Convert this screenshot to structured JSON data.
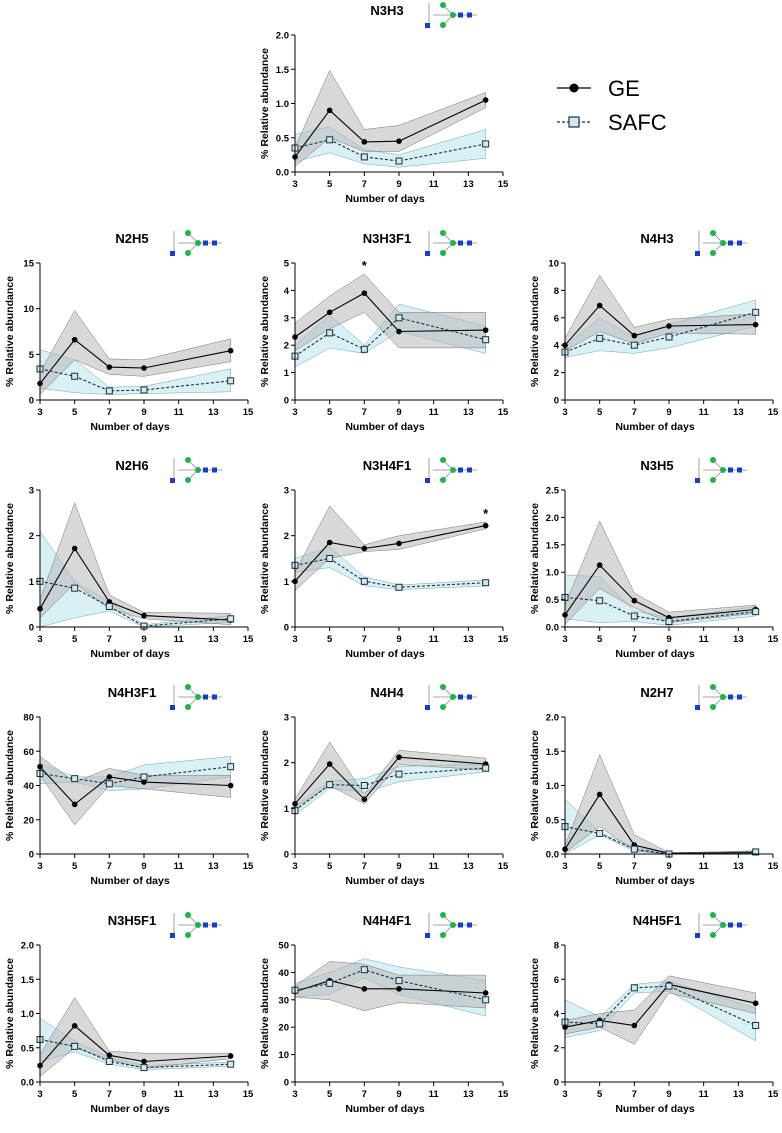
{
  "legend": {
    "ge_label": "GE",
    "safc_label": "SAFC"
  },
  "colors": {
    "ge_line": "#000000",
    "ge_band": "#b8b8b8",
    "safc_line": "#1f2f3a",
    "safc_marker_fill": "#cfe9ef",
    "safc_band": "#b9e3ec"
  },
  "chart_data": [
    {
      "type": "line",
      "title": "N3H3",
      "glycan": "N3H3",
      "xlabel": "Number of days",
      "ylabel": "% Relative abundance",
      "xlim": [
        3,
        15
      ],
      "xticks": [
        3,
        5,
        7,
        9,
        11,
        13,
        15
      ],
      "ylim": [
        0,
        2
      ],
      "yticks": [
        "0.0",
        "0.5",
        "1.0",
        "1.5",
        "2.0"
      ],
      "x": [
        3,
        5,
        7,
        9,
        14
      ],
      "series": [
        {
          "name": "GE",
          "values": [
            0.22,
            0.9,
            0.44,
            0.45,
            1.05
          ],
          "upper": [
            0.36,
            1.48,
            0.62,
            0.68,
            1.16
          ],
          "lower": [
            0.08,
            0.5,
            0.3,
            0.3,
            0.94
          ]
        },
        {
          "name": "SAFC",
          "values": [
            0.35,
            0.47,
            0.22,
            0.16,
            0.41
          ],
          "upper": [
            0.55,
            0.66,
            0.33,
            0.25,
            0.62
          ],
          "lower": [
            0.15,
            0.28,
            0.12,
            0.07,
            0.2
          ]
        }
      ]
    },
    {
      "type": "line",
      "title": "N2H5",
      "glycan": "N2H5",
      "xlabel": "Number of days",
      "ylabel": "% Relative abundance",
      "xlim": [
        3,
        15
      ],
      "xticks": [
        3,
        5,
        7,
        9,
        11,
        13,
        15
      ],
      "ylim": [
        0,
        15
      ],
      "yticks": [
        "0",
        "5",
        "10",
        "15"
      ],
      "x": [
        3,
        5,
        7,
        9,
        14
      ],
      "series": [
        {
          "name": "GE",
          "values": [
            1.8,
            6.6,
            3.6,
            3.5,
            5.4
          ],
          "upper": [
            3.0,
            9.8,
            4.5,
            4.4,
            6.7
          ],
          "lower": [
            0.6,
            4.4,
            2.8,
            2.6,
            4.2
          ]
        },
        {
          "name": "SAFC",
          "values": [
            3.4,
            2.6,
            1.0,
            1.1,
            2.1
          ],
          "upper": [
            5.5,
            4.4,
            1.4,
            1.5,
            3.4
          ],
          "lower": [
            1.3,
            0.8,
            0.6,
            0.7,
            0.9
          ]
        }
      ]
    },
    {
      "type": "line",
      "title": "N3H3F1",
      "glycan": "N3H3F1",
      "xlabel": "Number of days",
      "ylabel": "% Relative abundance",
      "xlim": [
        3,
        15
      ],
      "xticks": [
        3,
        5,
        7,
        9,
        11,
        13,
        15
      ],
      "ylim": [
        0,
        5
      ],
      "yticks": [
        "0",
        "1",
        "2",
        "3",
        "4",
        "5"
      ],
      "x": [
        3,
        5,
        7,
        9,
        14
      ],
      "annotations": [
        {
          "x": 7,
          "text": "*"
        }
      ],
      "series": [
        {
          "name": "GE",
          "values": [
            2.3,
            3.2,
            3.9,
            2.5,
            2.55
          ],
          "upper": [
            2.8,
            3.8,
            4.6,
            3.2,
            3.2
          ],
          "lower": [
            1.8,
            2.6,
            3.2,
            1.9,
            1.9
          ]
        },
        {
          "name": "SAFC",
          "values": [
            1.6,
            2.45,
            1.85,
            3.0,
            2.2
          ],
          "upper": [
            2.0,
            3.1,
            2.0,
            3.5,
            2.7
          ],
          "lower": [
            1.2,
            1.9,
            1.7,
            2.5,
            1.7
          ]
        }
      ]
    },
    {
      "type": "line",
      "title": "N4H3",
      "glycan": "N4H3",
      "xlabel": "Number of days",
      "ylabel": "% Relative abundance",
      "xlim": [
        3,
        15
      ],
      "xticks": [
        3,
        5,
        7,
        9,
        11,
        13,
        15
      ],
      "ylim": [
        0,
        10
      ],
      "yticks": [
        "0",
        "2",
        "4",
        "6",
        "8",
        "10"
      ],
      "x": [
        3,
        5,
        7,
        9,
        14
      ],
      "series": [
        {
          "name": "GE",
          "values": [
            4.0,
            6.9,
            4.7,
            5.4,
            5.5
          ],
          "upper": [
            4.5,
            9.1,
            5.3,
            5.9,
            6.3
          ],
          "lower": [
            3.6,
            5.0,
            4.1,
            4.9,
            4.8
          ]
        },
        {
          "name": "SAFC",
          "values": [
            3.5,
            4.5,
            4.0,
            4.6,
            6.4
          ],
          "upper": [
            3.9,
            6.0,
            4.6,
            5.5,
            7.3
          ],
          "lower": [
            3.1,
            3.6,
            3.4,
            3.8,
            5.4
          ]
        }
      ]
    },
    {
      "type": "line",
      "title": "N2H6",
      "glycan": "N2H6",
      "xlabel": "Number of days",
      "ylabel": "% Relative abundance",
      "xlim": [
        3,
        15
      ],
      "xticks": [
        3,
        5,
        7,
        9,
        11,
        13,
        15
      ],
      "ylim": [
        0,
        3
      ],
      "yticks": [
        "0",
        "1",
        "2",
        "3"
      ],
      "x": [
        3,
        5,
        7,
        9,
        14
      ],
      "series": [
        {
          "name": "GE",
          "values": [
            0.4,
            1.72,
            0.55,
            0.25,
            0.15
          ],
          "upper": [
            0.6,
            2.72,
            0.7,
            0.32,
            0.3
          ],
          "lower": [
            0.2,
            0.95,
            0.4,
            0.18,
            0.05
          ]
        },
        {
          "name": "SAFC",
          "values": [
            1.0,
            0.85,
            0.45,
            0.02,
            0.18
          ],
          "upper": [
            2.1,
            1.0,
            0.55,
            0.05,
            0.25
          ],
          "lower": [
            0.0,
            0.2,
            0.35,
            0.0,
            0.1
          ]
        }
      ]
    },
    {
      "type": "line",
      "title": "N3H4F1",
      "glycan": "N3H4F1",
      "xlabel": "Number of days",
      "ylabel": "% Relative abundance",
      "xlim": [
        3,
        15
      ],
      "xticks": [
        3,
        5,
        7,
        9,
        11,
        13,
        15
      ],
      "ylim": [
        0,
        3
      ],
      "yticks": [
        "0",
        "1",
        "2",
        "3"
      ],
      "x": [
        3,
        5,
        7,
        9,
        14
      ],
      "annotations": [
        {
          "x": 14,
          "text": "*"
        }
      ],
      "series": [
        {
          "name": "GE",
          "values": [
            1.0,
            1.85,
            1.72,
            1.83,
            2.22
          ],
          "upper": [
            1.2,
            2.65,
            1.8,
            2.0,
            2.3
          ],
          "lower": [
            0.8,
            1.5,
            1.65,
            1.7,
            2.15
          ]
        },
        {
          "name": "SAFC",
          "values": [
            1.35,
            1.5,
            1.0,
            0.87,
            0.97
          ],
          "upper": [
            1.5,
            1.75,
            1.1,
            0.92,
            1.03
          ],
          "lower": [
            1.2,
            1.3,
            0.9,
            0.82,
            0.9
          ]
        }
      ]
    },
    {
      "type": "line",
      "title": "N3H5",
      "glycan": "N3H5",
      "xlabel": "Number of days",
      "ylabel": "% Relative abundance",
      "xlim": [
        3,
        15
      ],
      "xticks": [
        3,
        5,
        7,
        9,
        11,
        13,
        15
      ],
      "ylim": [
        0,
        2.5
      ],
      "yticks": [
        "0.0",
        "0.5",
        "1.0",
        "1.5",
        "2.0",
        "2.5"
      ],
      "x": [
        3,
        5,
        7,
        9,
        14
      ],
      "series": [
        {
          "name": "GE",
          "values": [
            0.22,
            1.13,
            0.48,
            0.17,
            0.32
          ],
          "upper": [
            0.4,
            1.93,
            0.62,
            0.27,
            0.4
          ],
          "lower": [
            0.05,
            0.7,
            0.35,
            0.08,
            0.25
          ]
        },
        {
          "name": "SAFC",
          "values": [
            0.54,
            0.48,
            0.2,
            0.1,
            0.28
          ],
          "upper": [
            0.95,
            0.92,
            0.3,
            0.17,
            0.37
          ],
          "lower": [
            0.15,
            0.08,
            0.1,
            0.03,
            0.2
          ]
        }
      ]
    },
    {
      "type": "line",
      "title": "N4H3F1",
      "glycan": "N4H3F1",
      "xlabel": "Number of days",
      "ylabel": "% Relative abundance",
      "xlim": [
        3,
        15
      ],
      "xticks": [
        3,
        5,
        7,
        9,
        11,
        13,
        15
      ],
      "ylim": [
        0,
        80
      ],
      "yticks": [
        "0",
        "20",
        "40",
        "60",
        "80"
      ],
      "x": [
        3,
        5,
        7,
        9,
        14
      ],
      "series": [
        {
          "name": "GE",
          "values": [
            51,
            29,
            45,
            42,
            40
          ],
          "upper": [
            57,
            42,
            50,
            46,
            46
          ],
          "lower": [
            46,
            17,
            40,
            38,
            33
          ]
        },
        {
          "name": "SAFC",
          "values": [
            47,
            44,
            41,
            45,
            51
          ],
          "upper": [
            53,
            45,
            45,
            52,
            57
          ],
          "lower": [
            41,
            42,
            37,
            38,
            45
          ]
        }
      ]
    },
    {
      "type": "line",
      "title": "N4H4",
      "glycan": "N4H4",
      "xlabel": "Number of days",
      "ylabel": "% Relative abundance",
      "xlim": [
        3,
        15
      ],
      "xticks": [
        3,
        5,
        7,
        9,
        11,
        13,
        15
      ],
      "ylim": [
        0,
        3
      ],
      "yticks": [
        "0",
        "1",
        "2",
        "3"
      ],
      "x": [
        3,
        5,
        7,
        9,
        14
      ],
      "series": [
        {
          "name": "GE",
          "values": [
            1.1,
            1.97,
            1.2,
            2.12,
            1.97
          ],
          "upper": [
            1.2,
            2.45,
            1.3,
            2.27,
            2.1
          ],
          "lower": [
            1.0,
            1.5,
            1.1,
            1.96,
            1.84
          ]
        },
        {
          "name": "SAFC",
          "values": [
            0.95,
            1.52,
            1.5,
            1.75,
            1.88
          ],
          "upper": [
            1.05,
            1.6,
            1.65,
            1.92,
            1.97
          ],
          "lower": [
            0.85,
            1.44,
            1.35,
            1.58,
            1.8
          ]
        }
      ]
    },
    {
      "type": "line",
      "title": "N2H7",
      "glycan": "N2H7",
      "xlabel": "Number of days",
      "ylabel": "% Relative abundance",
      "xlim": [
        3,
        15
      ],
      "xticks": [
        3,
        5,
        7,
        9,
        11,
        13,
        15
      ],
      "ylim": [
        0,
        2
      ],
      "yticks": [
        "0.0",
        "0.5",
        "1.0",
        "1.5",
        "2.0"
      ],
      "x": [
        3,
        5,
        7,
        9,
        14
      ],
      "series": [
        {
          "name": "GE",
          "values": [
            0.07,
            0.87,
            0.13,
            0.01,
            0.02
          ],
          "upper": [
            0.12,
            1.45,
            0.28,
            0.02,
            0.04
          ],
          "lower": [
            0.02,
            0.4,
            0.05,
            0.0,
            0.0
          ]
        },
        {
          "name": "SAFC",
          "values": [
            0.4,
            0.3,
            0.07,
            0.0,
            0.03
          ],
          "upper": [
            0.8,
            0.32,
            0.1,
            0.01,
            0.05
          ],
          "lower": [
            0.0,
            0.28,
            0.04,
            0.0,
            0.01
          ]
        }
      ]
    },
    {
      "type": "line",
      "title": "N3H5F1",
      "glycan": "N3H5F1",
      "xlabel": "Number of days",
      "ylabel": "% Relative abundance",
      "xlim": [
        3,
        15
      ],
      "xticks": [
        3,
        5,
        7,
        9,
        11,
        13,
        15
      ],
      "ylim": [
        0,
        2
      ],
      "yticks": [
        "0.0",
        "0.5",
        "1.0",
        "1.5",
        "2.0"
      ],
      "x": [
        3,
        5,
        7,
        9,
        14
      ],
      "series": [
        {
          "name": "GE",
          "values": [
            0.24,
            0.82,
            0.39,
            0.3,
            0.38
          ],
          "upper": [
            0.4,
            1.23,
            0.45,
            0.42,
            0.42
          ],
          "lower": [
            0.08,
            0.5,
            0.33,
            0.2,
            0.34
          ]
        },
        {
          "name": "SAFC",
          "values": [
            0.62,
            0.52,
            0.3,
            0.21,
            0.26
          ],
          "upper": [
            0.93,
            0.6,
            0.36,
            0.24,
            0.29
          ],
          "lower": [
            0.3,
            0.44,
            0.26,
            0.18,
            0.23
          ]
        }
      ]
    },
    {
      "type": "line",
      "title": "N4H4F1",
      "glycan": "N4H4F1",
      "xlabel": "Number of days",
      "ylabel": "% Relative abundance",
      "xlim": [
        3,
        15
      ],
      "xticks": [
        3,
        5,
        7,
        9,
        11,
        13,
        15
      ],
      "ylim": [
        0,
        50
      ],
      "yticks": [
        "0",
        "10",
        "20",
        "30",
        "40",
        "50"
      ],
      "x": [
        3,
        5,
        7,
        9,
        14
      ],
      "series": [
        {
          "name": "GE",
          "values": [
            33,
            37,
            34,
            34,
            32.5
          ],
          "upper": [
            35,
            44,
            43,
            39,
            39
          ],
          "lower": [
            31,
            30,
            26,
            29,
            27
          ]
        },
        {
          "name": "SAFC",
          "values": [
            33.5,
            36,
            41,
            37,
            30
          ],
          "upper": [
            36,
            40,
            45,
            42,
            37
          ],
          "lower": [
            31,
            32,
            38,
            32,
            24
          ]
        }
      ]
    },
    {
      "type": "line",
      "title": "N4H5F1",
      "glycan": "N4H5F1",
      "xlabel": "Number of days",
      "ylabel": "% Relative abundance",
      "xlim": [
        3,
        15
      ],
      "xticks": [
        3,
        5,
        7,
        9,
        11,
        13,
        15
      ],
      "ylim": [
        0,
        8
      ],
      "yticks": [
        "0",
        "2",
        "4",
        "6",
        "8"
      ],
      "x": [
        3,
        5,
        7,
        9,
        14
      ],
      "series": [
        {
          "name": "GE",
          "values": [
            3.2,
            3.6,
            3.3,
            5.7,
            4.6
          ],
          "upper": [
            3.6,
            4.0,
            4.2,
            6.2,
            5.2
          ],
          "lower": [
            2.8,
            3.2,
            2.2,
            5.2,
            4.0
          ]
        },
        {
          "name": "SAFC",
          "values": [
            3.5,
            3.4,
            5.5,
            5.6,
            3.3
          ],
          "upper": [
            4.8,
            3.8,
            5.7,
            5.9,
            4.3
          ],
          "lower": [
            2.6,
            3.0,
            5.2,
            5.3,
            2.4
          ]
        }
      ]
    }
  ]
}
